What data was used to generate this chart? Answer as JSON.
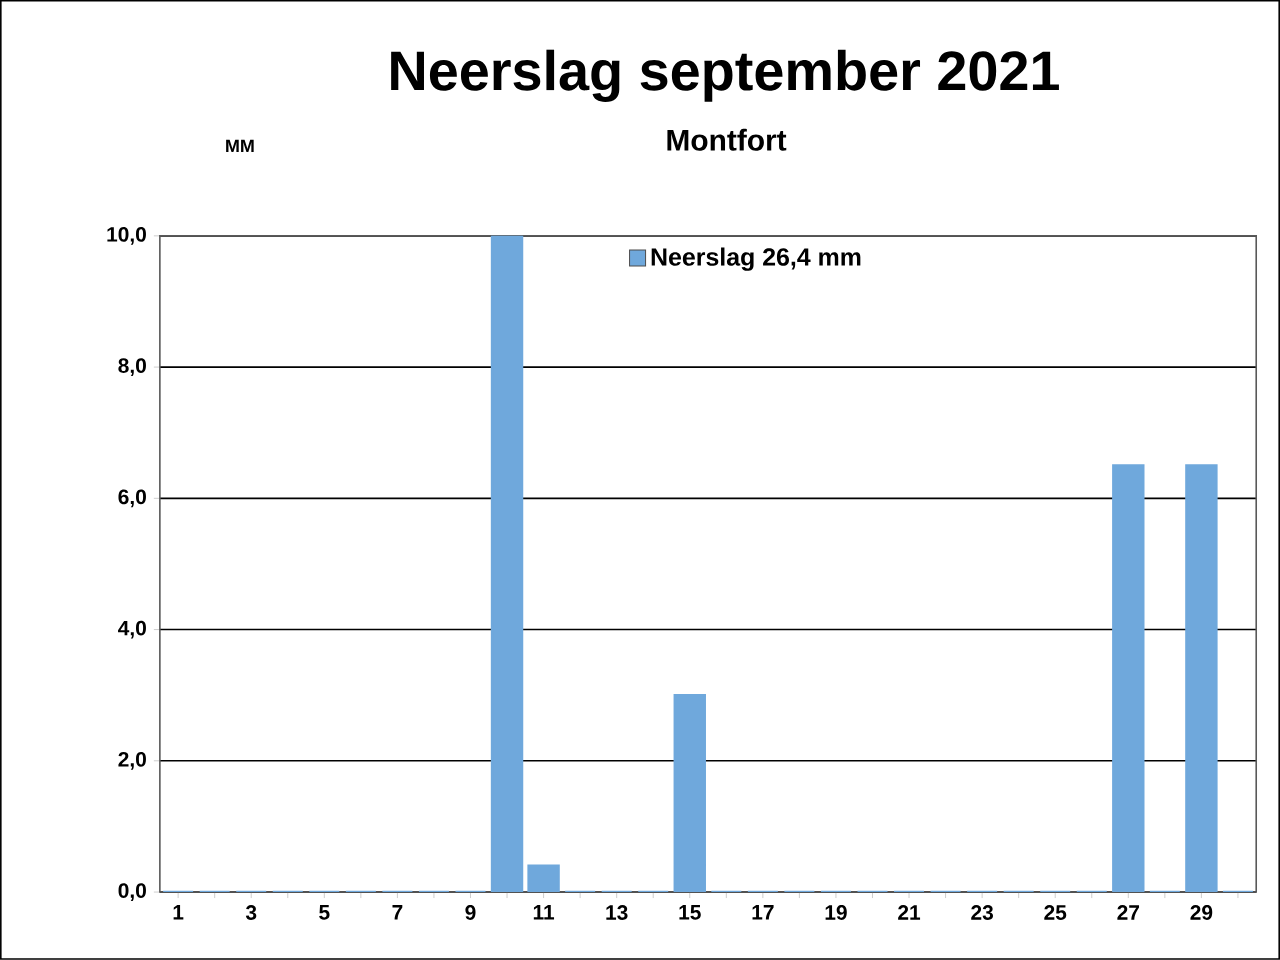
{
  "chart_data": {
    "type": "bar",
    "title": "Neerslag september 2021",
    "subtitle": "Montfort",
    "ylabel": "MM",
    "categories": [
      "1",
      null,
      "3",
      null,
      "5",
      null,
      "7",
      null,
      "9",
      null,
      "11",
      null,
      "13",
      null,
      "15",
      null,
      "17",
      null,
      "19",
      null,
      "21",
      null,
      "23",
      null,
      "25",
      null,
      "27",
      null,
      "29",
      null
    ],
    "series": [
      {
        "name": "Neerslag 26,4 mm",
        "color": "#6fa8dc",
        "values": [
          0,
          0,
          0,
          0,
          0,
          0,
          0,
          0,
          0,
          10.0,
          0.4,
          0,
          0,
          0,
          3.0,
          0,
          0,
          0,
          0,
          0,
          0,
          0,
          0,
          0,
          0,
          0,
          6.5,
          0,
          6.5,
          0
        ]
      }
    ],
    "ylim": [
      0,
      10
    ],
    "yticks": [
      {
        "value": 0,
        "label": "0,0"
      },
      {
        "value": 2,
        "label": "2,0"
      },
      {
        "value": 4,
        "label": "4,0"
      },
      {
        "value": 6,
        "label": "6,0"
      },
      {
        "value": 8,
        "label": "8,0"
      },
      {
        "value": 10,
        "label": "10,0"
      }
    ],
    "grid": "y",
    "legend": "top"
  }
}
